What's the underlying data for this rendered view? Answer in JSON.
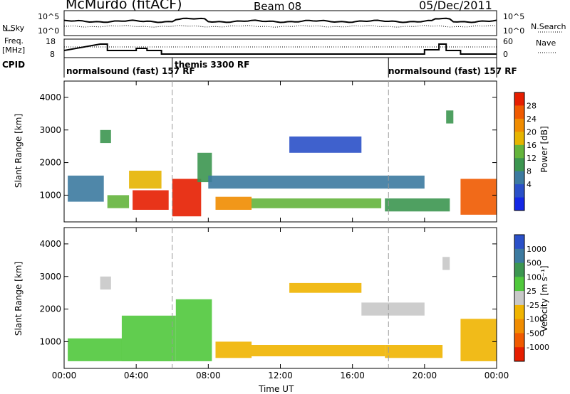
{
  "header": {
    "station": "McMurdo (fitACF)",
    "beam": "Beam 08",
    "date": "05/Dec/2011"
  },
  "status_panels": {
    "nsky_label": "N.Sky",
    "nsearch_label": "N.Search",
    "noise_ticks_left": [
      "10^5",
      "10^0"
    ],
    "noise_ticks_right": [
      "10^5",
      "10^0"
    ],
    "freq_label_line1": "Freq.",
    "freq_label_line2": "[MHz]",
    "freq_ticks": [
      "18",
      "8"
    ],
    "nave_label": "Nave",
    "nave_ticks": [
      "60",
      "0"
    ],
    "cpid_label": "CPID",
    "cpid_segments": [
      {
        "label": "normalsound (fast) 157 RF",
        "start_hour": 0,
        "end_hour": 6
      },
      {
        "label": "themis 3300 RF",
        "start_hour": 6,
        "end_hour": 18
      },
      {
        "label": "normalsound (fast) 157 RF",
        "start_hour": 18,
        "end_hour": 24
      }
    ]
  },
  "axes": {
    "xlabel": "Time UT",
    "xticks": [
      "00:00",
      "04:00",
      "08:00",
      "12:00",
      "16:00",
      "20:00",
      "00:00"
    ],
    "ylabel": "Slant Range [km]",
    "yticks": [
      "1000",
      "2000",
      "3000",
      "4000"
    ]
  },
  "colorbars": {
    "power": {
      "label": "Power [dB]",
      "ticks": [
        "4",
        "8",
        "12",
        "16",
        "20",
        "24",
        "28"
      ],
      "colors": [
        "#1428e6",
        "#2a50c8",
        "#3c7aa0",
        "#3c9650",
        "#64b43c",
        "#e6b400",
        "#f08c00",
        "#f05a00",
        "#e61e00"
      ]
    },
    "velocity": {
      "label": "Velocity [m s⁻¹]",
      "ticks": [
        "1000",
        "500",
        "100",
        "25",
        "-25",
        "-100",
        "-500",
        "-1000"
      ],
      "colors": [
        "#2a50c8",
        "#3c7aa0",
        "#3c9650",
        "#50c83c",
        "#c8c8c8",
        "#f0b400",
        "#f08c00",
        "#f05a00",
        "#e61e00"
      ]
    }
  },
  "chart_data": [
    {
      "type": "heatmap",
      "name_from_axis": "Power [dB]",
      "xlabel": "Time UT",
      "ylabel": "Slant Range [km]",
      "xlim_hours": [
        0,
        24
      ],
      "ylim_km": [
        180,
        4500
      ],
      "zlim": [
        0,
        30
      ],
      "regions": [
        {
          "t0": 2.0,
          "t1": 2.6,
          "r0": 2600,
          "r1": 3000,
          "value": 10
        },
        {
          "t0": 0.2,
          "t1": 2.2,
          "r0": 800,
          "r1": 1600,
          "value": 9
        },
        {
          "t0": 2.4,
          "t1": 3.6,
          "r0": 600,
          "r1": 1000,
          "value": 14
        },
        {
          "t0": 3.6,
          "t1": 5.4,
          "r0": 1200,
          "r1": 1750,
          "value": 18
        },
        {
          "t0": 3.8,
          "t1": 5.8,
          "r0": 550,
          "r1": 1150,
          "value": 27
        },
        {
          "t0": 6.0,
          "t1": 7.6,
          "r0": 350,
          "r1": 1500,
          "value": 29
        },
        {
          "t0": 7.4,
          "t1": 8.2,
          "r0": 1400,
          "r1": 2300,
          "value": 12
        },
        {
          "t0": 8.4,
          "t1": 10.4,
          "r0": 550,
          "r1": 950,
          "value": 22
        },
        {
          "t0": 10.4,
          "t1": 17.6,
          "r0": 600,
          "r1": 900,
          "value": 15
        },
        {
          "t0": 8.0,
          "t1": 20.0,
          "r0": 1200,
          "r1": 1600,
          "value": 8
        },
        {
          "t0": 12.5,
          "t1": 16.5,
          "r0": 2300,
          "r1": 2800,
          "value": 6
        },
        {
          "t0": 17.8,
          "t1": 21.4,
          "r0": 500,
          "r1": 900,
          "value": 11
        },
        {
          "t0": 21.2,
          "t1": 21.6,
          "r0": 3200,
          "r1": 3600,
          "value": 10
        },
        {
          "t0": 22.0,
          "t1": 24.0,
          "r0": 400,
          "r1": 1500,
          "value": 26
        }
      ]
    },
    {
      "type": "heatmap",
      "name_from_axis": "Velocity [m s⁻¹]",
      "xlabel": "Time UT",
      "ylabel": "Slant Range [km]",
      "xlim_hours": [
        0,
        24
      ],
      "ylim_km": [
        180,
        4500
      ],
      "zlim": [
        -1000,
        1000
      ],
      "regions": [
        {
          "t0": 0.2,
          "t1": 3.2,
          "r0": 400,
          "r1": 1100,
          "value": 300
        },
        {
          "t0": 2.0,
          "t1": 2.6,
          "r0": 2600,
          "r1": 3000,
          "value": 0
        },
        {
          "t0": 3.2,
          "t1": 6.2,
          "r0": 400,
          "r1": 1800,
          "value": 300
        },
        {
          "t0": 6.2,
          "t1": 8.2,
          "r0": 400,
          "r1": 2300,
          "value": 200
        },
        {
          "t0": 8.4,
          "t1": 10.4,
          "r0": 500,
          "r1": 1000,
          "value": -300
        },
        {
          "t0": 10.4,
          "t1": 17.8,
          "r0": 550,
          "r1": 900,
          "value": -200
        },
        {
          "t0": 12.5,
          "t1": 16.5,
          "r0": 2500,
          "r1": 2800,
          "value": -150
        },
        {
          "t0": 16.5,
          "t1": 20.0,
          "r0": 1800,
          "r1": 2200,
          "value": 0
        },
        {
          "t0": 17.8,
          "t1": 21.0,
          "r0": 500,
          "r1": 900,
          "value": -300
        },
        {
          "t0": 21.0,
          "t1": 21.4,
          "r0": 3200,
          "r1": 3600,
          "value": 0
        },
        {
          "t0": 22.0,
          "t1": 24.0,
          "r0": 400,
          "r1": 1700,
          "value": -150
        }
      ]
    }
  ]
}
